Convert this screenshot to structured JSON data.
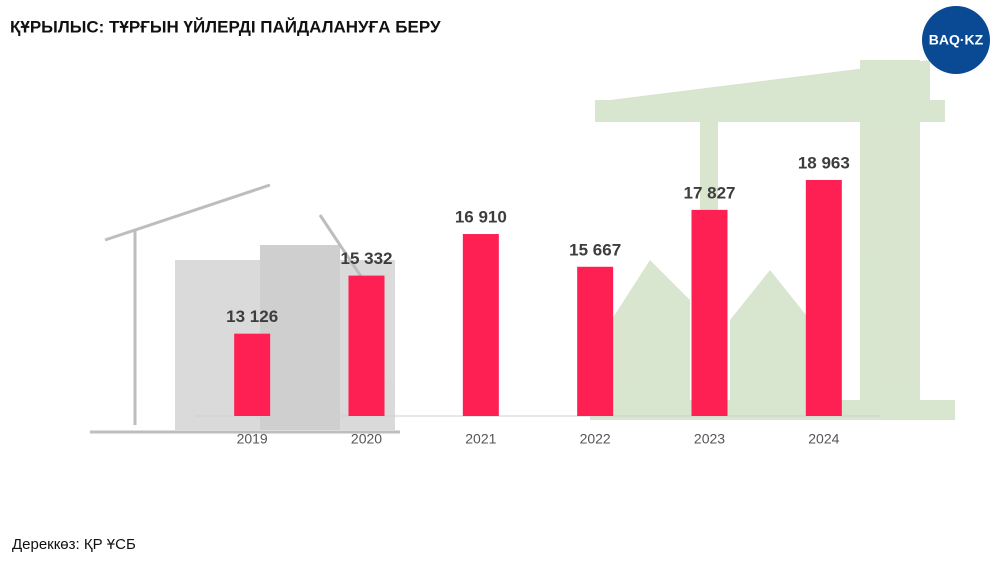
{
  "chart_data": {
    "type": "bar",
    "title": "ҚҰРЫЛЫС: ТҰРҒЫН ҮЙЛЕРДІ ПАЙДАЛАНУҒА БЕРУ",
    "categories": [
      "2019",
      "2020",
      "2021",
      "2022",
      "2023",
      "2024"
    ],
    "values": [
      13126,
      15332,
      16910,
      15667,
      17827,
      18963
    ],
    "value_labels": [
      "13 126",
      "15 332",
      "16 910",
      "15 667",
      "17 827",
      "18 963"
    ],
    "color": "#fe1f53",
    "ylim": [
      10000,
      22000
    ]
  },
  "source": "Дереккөз: ҚР ҰСБ",
  "logo": "BAQ·KZ"
}
